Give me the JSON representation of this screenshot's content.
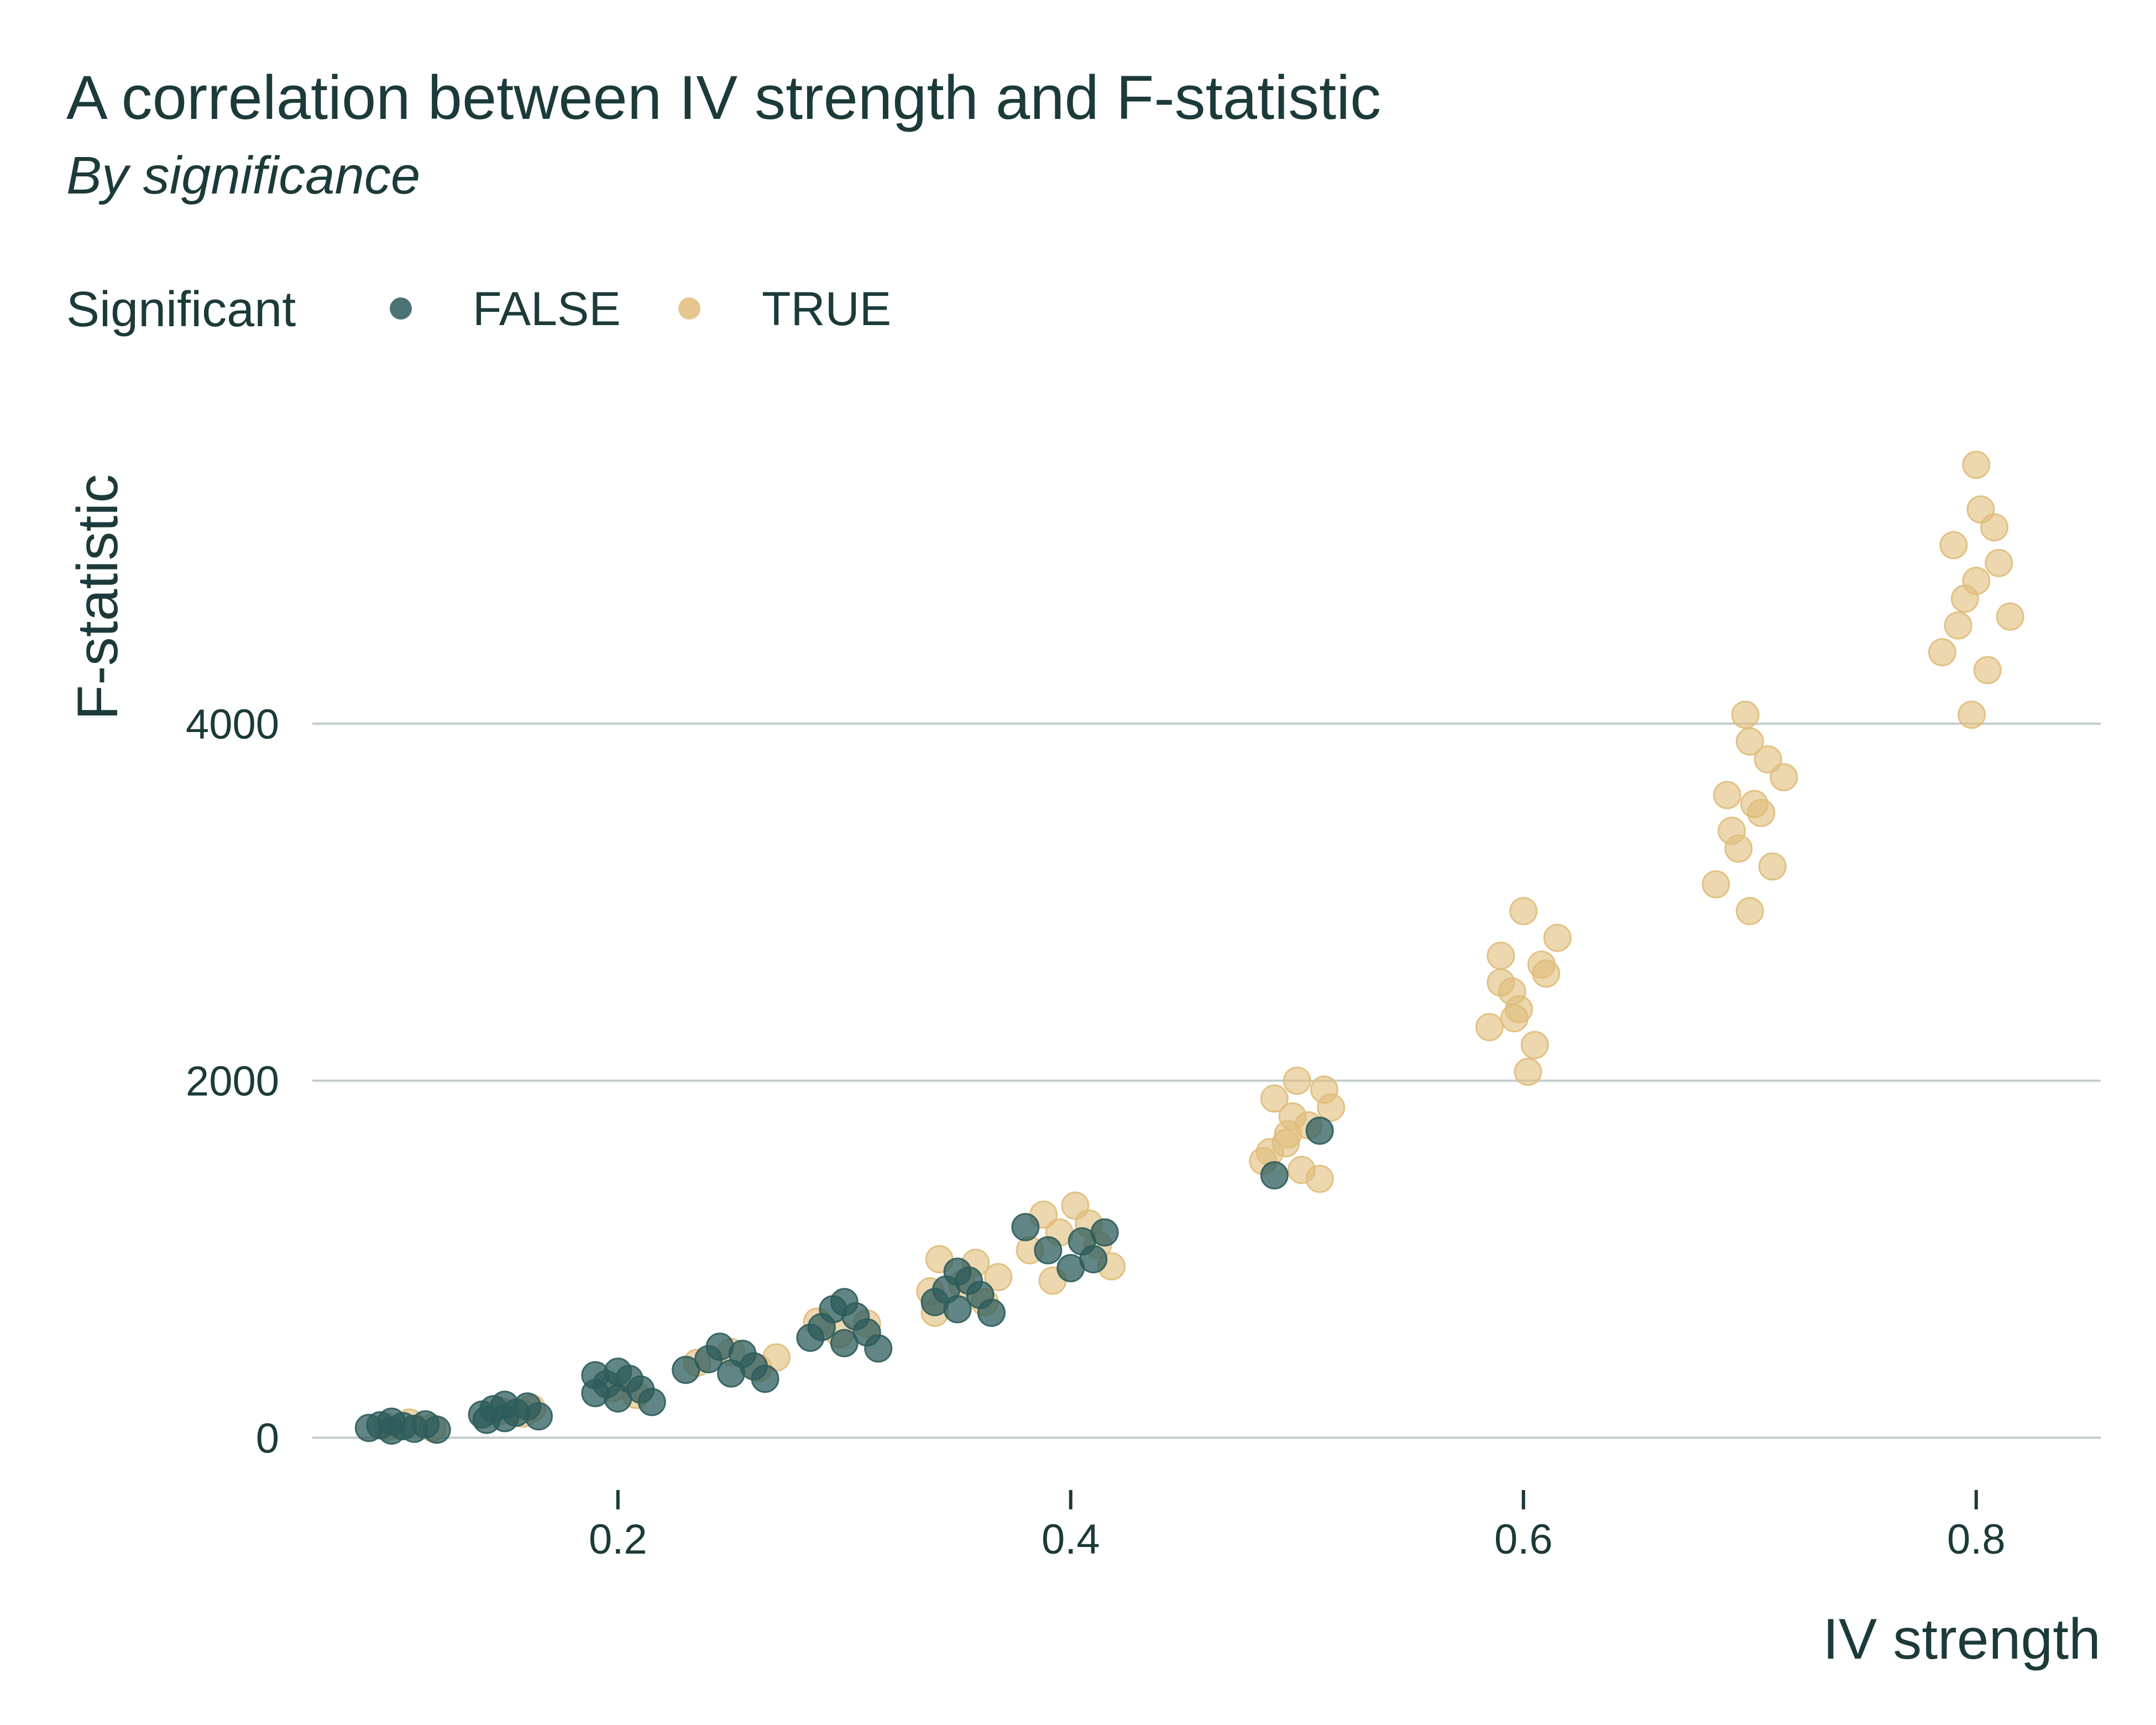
{
  "chart_data": {
    "type": "scatter",
    "title": "A correlation between IV strength and F-statistic",
    "subtitle": "By significance",
    "xlabel": "IV strength",
    "ylabel": "F-statistic",
    "xlim": [
      0.065,
      0.855
    ],
    "ylim": [
      -200,
      5700
    ],
    "x_ticks": [
      0.2,
      0.4,
      0.6,
      0.8
    ],
    "x_tick_labels": [
      "0.2",
      "0.4",
      "0.6",
      "0.8"
    ],
    "y_ticks": [
      0,
      2000,
      4000
    ],
    "y_tick_labels": [
      "0",
      "2000",
      "4000"
    ],
    "grid": "horizontal-major",
    "legend": {
      "title": "Significant",
      "position": "top-left",
      "entries": [
        {
          "label": "FALSE",
          "color": "#2e5c5c"
        },
        {
          "label": "TRUE",
          "color": "#e0bc7a"
        }
      ]
    },
    "series": [
      {
        "name": "FALSE",
        "color": "#2e5c5c",
        "points": [
          [
            0.09,
            55
          ],
          [
            0.095,
            70
          ],
          [
            0.1,
            40
          ],
          [
            0.105,
            65
          ],
          [
            0.11,
            50
          ],
          [
            0.115,
            75
          ],
          [
            0.1,
            90
          ],
          [
            0.12,
            45
          ],
          [
            0.14,
            130
          ],
          [
            0.145,
            160
          ],
          [
            0.15,
            110
          ],
          [
            0.155,
            140
          ],
          [
            0.16,
            175
          ],
          [
            0.165,
            120
          ],
          [
            0.15,
            185
          ],
          [
            0.142,
            100
          ],
          [
            0.19,
            250
          ],
          [
            0.195,
            300
          ],
          [
            0.2,
            220
          ],
          [
            0.205,
            330
          ],
          [
            0.21,
            270
          ],
          [
            0.215,
            200
          ],
          [
            0.2,
            370
          ],
          [
            0.19,
            350
          ],
          [
            0.23,
            380
          ],
          [
            0.24,
            440
          ],
          [
            0.25,
            360
          ],
          [
            0.255,
            470
          ],
          [
            0.26,
            400
          ],
          [
            0.265,
            330
          ],
          [
            0.245,
            510
          ],
          [
            0.285,
            560
          ],
          [
            0.29,
            620
          ],
          [
            0.3,
            530
          ],
          [
            0.305,
            680
          ],
          [
            0.31,
            590
          ],
          [
            0.315,
            500
          ],
          [
            0.295,
            720
          ],
          [
            0.3,
            760
          ],
          [
            0.34,
            760
          ],
          [
            0.345,
            830
          ],
          [
            0.35,
            720
          ],
          [
            0.355,
            880
          ],
          [
            0.36,
            800
          ],
          [
            0.365,
            700
          ],
          [
            0.35,
            930
          ],
          [
            0.38,
            1180
          ],
          [
            0.39,
            1050
          ],
          [
            0.4,
            950
          ],
          [
            0.405,
            1100
          ],
          [
            0.41,
            1000
          ],
          [
            0.415,
            1150
          ],
          [
            0.49,
            1470
          ],
          [
            0.51,
            1720
          ]
        ]
      },
      {
        "name": "TRUE",
        "color": "#e0bc7a",
        "points": [
          [
            0.098,
            60
          ],
          [
            0.108,
            85
          ],
          [
            0.118,
            55
          ],
          [
            0.148,
            150
          ],
          [
            0.158,
            135
          ],
          [
            0.162,
            165
          ],
          [
            0.198,
            280
          ],
          [
            0.208,
            240
          ],
          [
            0.235,
            420
          ],
          [
            0.25,
            480
          ],
          [
            0.262,
            390
          ],
          [
            0.27,
            450
          ],
          [
            0.288,
            650
          ],
          [
            0.298,
            580
          ],
          [
            0.31,
            640
          ],
          [
            0.338,
            820
          ],
          [
            0.342,
            1000
          ],
          [
            0.352,
            860
          ],
          [
            0.358,
            980
          ],
          [
            0.362,
            760
          ],
          [
            0.368,
            900
          ],
          [
            0.34,
            700
          ],
          [
            0.382,
            1050
          ],
          [
            0.388,
            1250
          ],
          [
            0.395,
            1150
          ],
          [
            0.402,
            1300
          ],
          [
            0.408,
            1200
          ],
          [
            0.412,
            1080
          ],
          [
            0.418,
            960
          ],
          [
            0.392,
            880
          ],
          [
            0.485,
            1550
          ],
          [
            0.49,
            1900
          ],
          [
            0.495,
            1650
          ],
          [
            0.5,
            2000
          ],
          [
            0.505,
            1750
          ],
          [
            0.51,
            1450
          ],
          [
            0.515,
            1850
          ],
          [
            0.498,
            1800
          ],
          [
            0.488,
            1600
          ],
          [
            0.512,
            1950
          ],
          [
            0.502,
            1500
          ],
          [
            0.496,
            1700
          ],
          [
            0.585,
            2300
          ],
          [
            0.59,
            2700
          ],
          [
            0.595,
            2500
          ],
          [
            0.6,
            2950
          ],
          [
            0.605,
            2200
          ],
          [
            0.61,
            2600
          ],
          [
            0.615,
            2800
          ],
          [
            0.598,
            2400
          ],
          [
            0.602,
            2050
          ],
          [
            0.59,
            2550
          ],
          [
            0.608,
            2650
          ],
          [
            0.596,
            2350
          ],
          [
            0.685,
            3100
          ],
          [
            0.69,
            3600
          ],
          [
            0.695,
            3300
          ],
          [
            0.7,
            3900
          ],
          [
            0.705,
            3500
          ],
          [
            0.71,
            3200
          ],
          [
            0.715,
            3700
          ],
          [
            0.698,
            4050
          ],
          [
            0.7,
            2950
          ],
          [
            0.692,
            3400
          ],
          [
            0.708,
            3800
          ],
          [
            0.702,
            3550
          ],
          [
            0.785,
            4400
          ],
          [
            0.79,
            5000
          ],
          [
            0.795,
            4700
          ],
          [
            0.8,
            5450
          ],
          [
            0.805,
            4300
          ],
          [
            0.81,
            4900
          ],
          [
            0.815,
            4600
          ],
          [
            0.798,
            4050
          ],
          [
            0.802,
            5200
          ],
          [
            0.792,
            4550
          ],
          [
            0.808,
            5100
          ],
          [
            0.8,
            4800
          ]
        ]
      }
    ]
  }
}
